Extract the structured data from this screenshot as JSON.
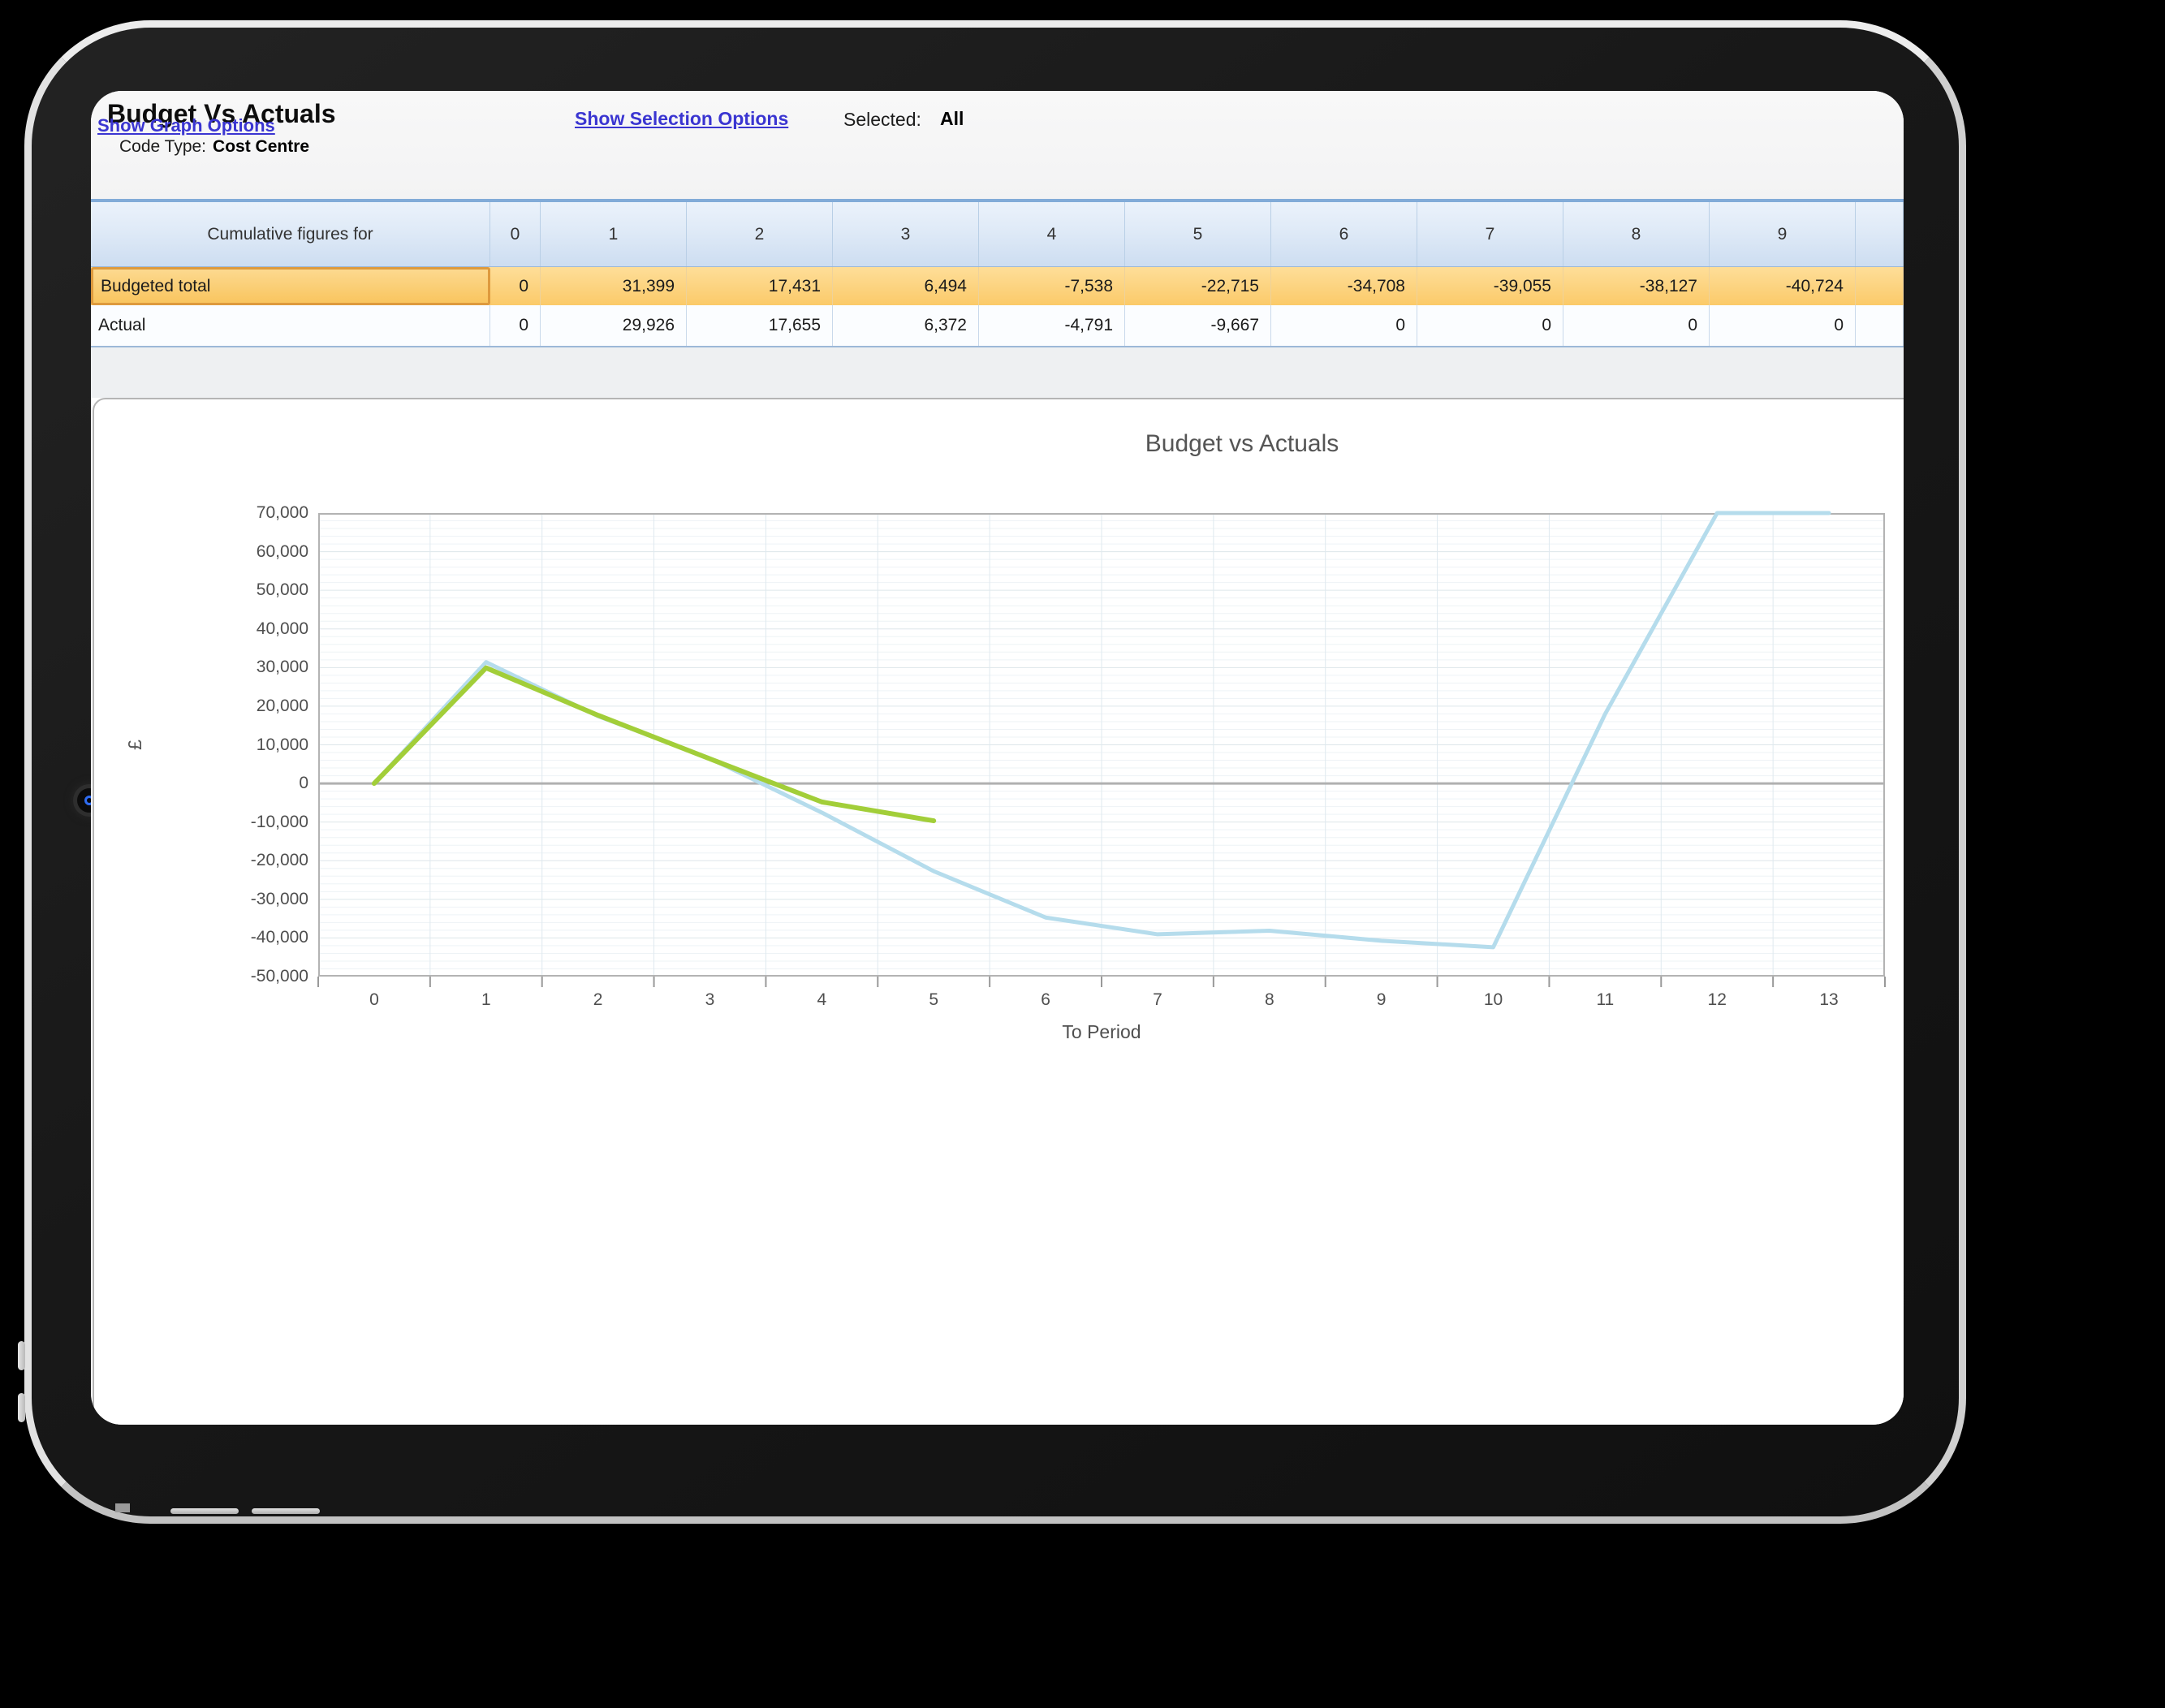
{
  "app": {
    "title": "Budget Vs Actuals",
    "selection_link": "Show Selection Options",
    "selected_label": "Selected:",
    "selected_value": "All",
    "code_type_label": "Code Type:",
    "code_type_value": "Cost Centre",
    "graph_link": "Show Graph Options"
  },
  "table": {
    "header_label": "Cumulative figures for",
    "periods": [
      "0",
      "1",
      "2",
      "3",
      "4",
      "5",
      "6",
      "7",
      "8",
      "9"
    ],
    "rows": [
      {
        "label": "Budgeted total",
        "selected": true,
        "values": [
          "0",
          "31,399",
          "17,431",
          "6,494",
          "-7,538",
          "-22,715",
          "-34,708",
          "-39,055",
          "-38,127",
          "-40,724"
        ]
      },
      {
        "label": "Actual",
        "selected": false,
        "values": [
          "0",
          "29,926",
          "17,655",
          "6,372",
          "-4,791",
          "-9,667",
          "0",
          "0",
          "0",
          "0"
        ]
      }
    ]
  },
  "chart_data": {
    "type": "line",
    "title": "Budget vs Actuals",
    "xlabel": "To Period",
    "ylabel": "£",
    "x": [
      0,
      1,
      2,
      3,
      4,
      5,
      6,
      7,
      8,
      9,
      10,
      11,
      12,
      13
    ],
    "x_padding": 0.5,
    "ylim": [
      -50000,
      70000
    ],
    "y_major_step": 10000,
    "y_minor_step": 2000,
    "grid": true,
    "legend": "none",
    "clamp_to_ylim": true,
    "series": [
      {
        "name": "Budgeted total",
        "color": "#b5dcec",
        "width": 5,
        "values": [
          0,
          31399,
          17431,
          6494,
          -7538,
          -22715,
          -34708,
          -39055,
          -38127,
          -40724,
          -42400,
          18000,
          76000,
          76000
        ]
      },
      {
        "name": "Actual",
        "color": "#a2ce39",
        "width": 6,
        "values": [
          0,
          29926,
          17655,
          6372,
          -4791,
          -9667
        ]
      }
    ]
  },
  "colors": {
    "background": "#000000",
    "device_body": "#1a1a1a",
    "device_rim": "#d9d9d9",
    "screen_bg": "#ffffff",
    "link": "#3a35d1",
    "table_header_top": "#ebf2fb",
    "table_header_bottom": "#cdddf1",
    "table_top_border": "#82abd8",
    "selected_row_bg": "#fcd584",
    "selected_row_border": "#de9a3e",
    "actual_row_bg": "#fbfdff",
    "panel_border": "#b5b5b5",
    "grid_major": "#dde6ea",
    "grid_minor": "#eef3f6",
    "grid_vertical": "#dfe9ef",
    "zero_line": "#b0b0b0",
    "plot_border": "#b3b3b3",
    "axis_text": "#4f4f4f",
    "series_budget": "#b5dcec",
    "series_actual": "#a2ce39"
  }
}
